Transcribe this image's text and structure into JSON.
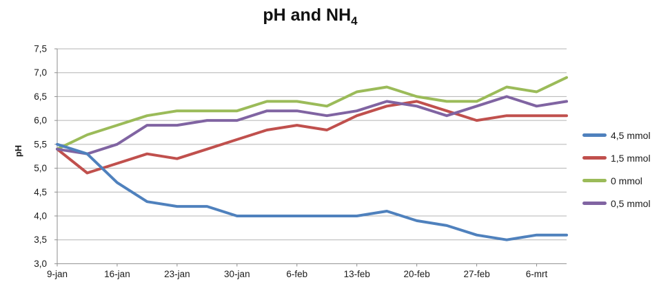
{
  "chart_data": {
    "type": "line",
    "title": {
      "text": "pH and NH",
      "subscript": "4"
    },
    "ylabel": "pH",
    "xlabel": "",
    "ylim": [
      3.0,
      7.5
    ],
    "ytick_step": 0.5,
    "decimal_separator": ",",
    "grid": true,
    "legend_position": "right",
    "x_tick_labels": [
      "9-jan",
      "16-jan",
      "23-jan",
      "30-jan",
      "6-feb",
      "13-feb",
      "20-feb",
      "27-feb",
      "6-mrt"
    ],
    "points_per_tick": 2,
    "num_points": 18,
    "series": [
      {
        "name": "4,5 mmol",
        "color": "#4F81BD",
        "values": [
          5.5,
          5.3,
          4.7,
          4.3,
          4.2,
          4.2,
          4.0,
          4.0,
          4.0,
          4.0,
          4.0,
          4.1,
          3.9,
          3.8,
          3.6,
          3.5,
          3.6,
          3.6
        ]
      },
      {
        "name": "1,5 mmol",
        "color": "#C0504D",
        "values": [
          5.4,
          4.9,
          5.1,
          5.3,
          5.2,
          5.4,
          5.6,
          5.8,
          5.9,
          5.8,
          6.1,
          6.3,
          6.4,
          6.2,
          6.0,
          6.1,
          6.1,
          6.1
        ]
      },
      {
        "name": "0 mmol",
        "color": "#9BBB59",
        "values": [
          5.4,
          5.7,
          5.9,
          6.1,
          6.2,
          6.2,
          6.2,
          6.4,
          6.4,
          6.3,
          6.6,
          6.7,
          6.5,
          6.4,
          6.4,
          6.7,
          6.6,
          6.9
        ]
      },
      {
        "name": "0,5 mmol",
        "color": "#8064A2",
        "values": [
          5.4,
          5.3,
          5.5,
          5.9,
          5.9,
          6.0,
          6.0,
          6.2,
          6.2,
          6.1,
          6.2,
          6.4,
          6.3,
          6.1,
          6.3,
          6.5,
          6.3,
          6.4
        ]
      }
    ],
    "colors": {
      "grid": "#B3B3B3",
      "axis": "#8E8E8E",
      "tick_text": "#1a1a1a"
    }
  }
}
